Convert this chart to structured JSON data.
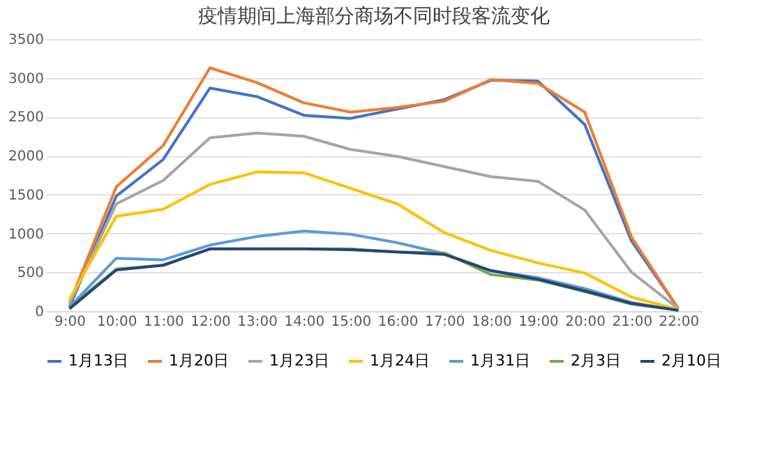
{
  "chart_data": {
    "type": "line",
    "title": "疫情期间上海部分商场不同时段客流变化",
    "categories": [
      "9:00",
      "10:00",
      "11:00",
      "12:00",
      "13:00",
      "14:00",
      "15:00",
      "16:00",
      "17:00",
      "18:00",
      "19:00",
      "20:00",
      "21:00",
      "22:00"
    ],
    "series": [
      {
        "name": "1月13日",
        "color": "#4472c4",
        "values": [
          50,
          1480,
          1950,
          2870,
          2760,
          2520,
          2480,
          2600,
          2720,
          2970,
          2960,
          2400,
          900,
          30
        ]
      },
      {
        "name": "1月20日",
        "color": "#ed7d31",
        "values": [
          100,
          1600,
          2130,
          3130,
          2940,
          2680,
          2560,
          2620,
          2700,
          2980,
          2930,
          2560,
          950,
          30
        ]
      },
      {
        "name": "1月23日",
        "color": "#a5a5a5",
        "values": [
          100,
          1380,
          1680,
          2230,
          2290,
          2250,
          2080,
          1990,
          1860,
          1730,
          1670,
          1300,
          500,
          30
        ]
      },
      {
        "name": "1月24日",
        "color": "#ffc000",
        "values": [
          150,
          1220,
          1310,
          1630,
          1790,
          1780,
          1580,
          1380,
          1010,
          780,
          620,
          490,
          180,
          20
        ]
      },
      {
        "name": "1月31日",
        "color": "#5b9bd5",
        "values": [
          50,
          680,
          660,
          850,
          960,
          1030,
          990,
          880,
          740,
          520,
          430,
          290,
          110,
          10
        ]
      },
      {
        "name": "2月3日",
        "color": "#70ad47",
        "values": [
          50,
          540,
          590,
          800,
          800,
          800,
          800,
          760,
          750,
          470,
          400,
          250,
          90,
          10
        ]
      },
      {
        "name": "2月10日",
        "color": "#264478",
        "values": [
          30,
          530,
          590,
          800,
          800,
          800,
          790,
          760,
          730,
          520,
          410,
          260,
          100,
          10
        ]
      }
    ],
    "ylim": [
      0,
      3500
    ],
    "yticks": [
      0,
      500,
      1000,
      1500,
      2000,
      2500,
      3000,
      3500
    ],
    "grid": "y",
    "legend": "bottom",
    "marker": "none",
    "line_style": "solid"
  }
}
